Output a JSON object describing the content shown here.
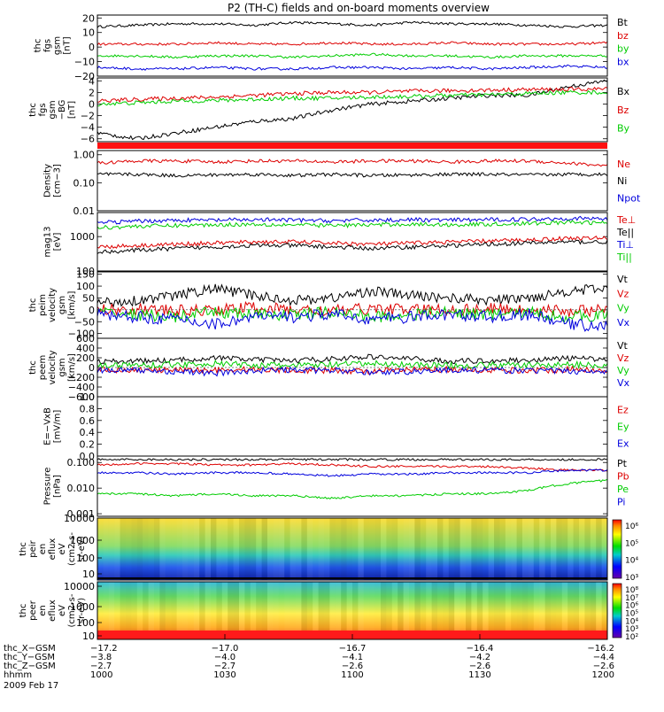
{
  "title": "P2 (TH-C) fields and on-board moments overview",
  "date": "2009 Feb 17",
  "colors": {
    "black": "#000000",
    "red": "#dd0000",
    "green": "#00cc00",
    "blue": "#0000dd"
  },
  "chart_data": [
    {
      "type": "line",
      "ylabel": [
        "thc",
        "fgs",
        "gsm",
        "[nT]"
      ],
      "yticks": [
        "20",
        "10",
        "0",
        "−10",
        "−20"
      ],
      "series": [
        {
          "name": "Bt",
          "color": "black",
          "values": [
            14,
            15,
            16,
            16,
            15,
            17,
            16,
            15,
            17,
            16,
            16,
            15,
            14,
            15
          ]
        },
        {
          "name": "bz",
          "color": "red",
          "values": [
            2,
            2,
            2,
            3,
            2,
            2,
            3,
            2,
            2,
            3,
            2,
            2,
            2,
            3
          ]
        },
        {
          "name": "by",
          "color": "green",
          "values": [
            -6,
            -6,
            -7,
            -6,
            -6,
            -7,
            -6,
            -5,
            -6,
            -6,
            -7,
            -6,
            -6,
            -6
          ]
        },
        {
          "name": "bx",
          "color": "blue",
          "values": [
            -14,
            -15,
            -15,
            -14,
            -15,
            -15,
            -14,
            -14,
            -15,
            -14,
            -15,
            -14,
            -13,
            -14
          ]
        }
      ]
    },
    {
      "type": "line",
      "ylabel": [
        "thc",
        "fgs",
        "gsm",
        "−BG",
        "[nT]"
      ],
      "yticks": [
        "4",
        "2",
        "0",
        "−2",
        "−4",
        "−6"
      ],
      "series": [
        {
          "name": "Bx",
          "color": "black",
          "values": [
            -5,
            -6,
            -5,
            -4,
            -3,
            -2.5,
            -1,
            0,
            0.5,
            1,
            1.5,
            1.5,
            3,
            4
          ]
        },
        {
          "name": "Bz",
          "color": "red",
          "values": [
            0.5,
            0.8,
            1,
            1.2,
            1.5,
            1.8,
            2,
            2,
            2.2,
            2.3,
            2.4,
            2.5,
            2.5,
            2.6
          ]
        },
        {
          "name": "By",
          "color": "green",
          "values": [
            0,
            0.2,
            0.5,
            0.6,
            0.8,
            1,
            1,
            1.2,
            1.3,
            1.5,
            1.6,
            1.8,
            2,
            2
          ]
        }
      ]
    },
    {
      "type": "line",
      "ylabel": [
        "Density",
        "[cm−3]"
      ],
      "yticks": [
        "1.00",
        "0.10",
        "0.01"
      ],
      "series": [
        {
          "name": "Ne",
          "color": "red",
          "values": [
            0.5,
            0.6,
            0.6,
            0.55,
            0.6,
            0.6,
            0.55,
            0.6,
            0.6,
            0.55,
            0.6,
            0.6,
            0.5,
            0.4
          ]
        },
        {
          "name": "Ni",
          "color": "black",
          "values": [
            0.2,
            0.2,
            0.18,
            0.19,
            0.2,
            0.18,
            0.2,
            0.18,
            0.19,
            0.2,
            0.2,
            0.19,
            0.2,
            0.2
          ]
        },
        {
          "name": "Npot",
          "color": "blue",
          "values": []
        }
      ]
    },
    {
      "type": "line",
      "ylabel": [
        "mag13",
        "[eV]"
      ],
      "yticks": [
        "1000",
        "100"
      ],
      "series": [
        {
          "name": "Te⊥",
          "color": "red",
          "values": [
            500,
            550,
            600,
            650,
            700,
            700,
            650,
            600,
            650,
            700,
            750,
            800,
            900,
            900
          ]
        },
        {
          "name": "Te||",
          "color": "black",
          "values": [
            350,
            400,
            450,
            500,
            550,
            550,
            500,
            450,
            500,
            550,
            600,
            650,
            700,
            700
          ]
        },
        {
          "name": "Ti⊥",
          "color": "blue",
          "values": [
            2500,
            2800,
            3000,
            3000,
            3100,
            3000,
            2900,
            3000,
            3100,
            3000,
            3100,
            3200,
            3400,
            3300
          ]
        },
        {
          "name": "Ti||",
          "color": "green",
          "values": [
            1800,
            2000,
            2100,
            2200,
            2300,
            2200,
            2100,
            2200,
            2300,
            2200,
            2300,
            2400,
            2600,
            2500
          ]
        }
      ]
    },
    {
      "type": "line",
      "ylabel": [
        "thc",
        "peim",
        "velocity",
        "gsm",
        "[km/s]"
      ],
      "yticks": [
        "150",
        "100",
        "50",
        "0",
        "−50",
        "−100"
      ],
      "series": [
        {
          "name": "Vt",
          "color": "black",
          "values": [
            30,
            40,
            60,
            90,
            60,
            40,
            50,
            80,
            60,
            50,
            40,
            50,
            80,
            90
          ]
        },
        {
          "name": "Vz",
          "color": "red",
          "values": [
            0,
            5,
            -5,
            0,
            10,
            0,
            -5,
            5,
            0,
            0,
            5,
            0,
            -5,
            0
          ]
        },
        {
          "name": "Vy",
          "color": "green",
          "values": [
            -10,
            -20,
            -30,
            -10,
            -20,
            -20,
            -10,
            -30,
            -20,
            -10,
            -20,
            -10,
            -30,
            -20
          ]
        },
        {
          "name": "Vx",
          "color": "blue",
          "values": [
            -20,
            -30,
            -40,
            -60,
            -30,
            -30,
            -20,
            -40,
            -30,
            -20,
            -30,
            -20,
            -60,
            -70
          ]
        }
      ]
    },
    {
      "type": "line",
      "ylabel": [
        "thc",
        "peem",
        "velocity",
        "gsm",
        "[km/s]"
      ],
      "yticks": [
        "600",
        "400",
        "200",
        "0",
        "−200",
        "−400",
        "−600"
      ],
      "series": [
        {
          "name": "Vt",
          "color": "black",
          "values": [
            120,
            130,
            150,
            200,
            160,
            140,
            180,
            220,
            180,
            130,
            140,
            150,
            190,
            170
          ]
        },
        {
          "name": "Vz",
          "color": "red",
          "values": [
            -40,
            -50,
            -60,
            -50,
            -40,
            -50,
            -60,
            -80,
            -50,
            -40,
            -50,
            -60,
            -40,
            -50
          ]
        },
        {
          "name": "Vy",
          "color": "green",
          "values": [
            40,
            50,
            60,
            80,
            50,
            40,
            60,
            80,
            60,
            40,
            50,
            50,
            60,
            50
          ]
        },
        {
          "name": "Vx",
          "color": "blue",
          "values": [
            -60,
            -60,
            -80,
            -120,
            -60,
            -50,
            -60,
            -100,
            -80,
            -50,
            -60,
            -60,
            -80,
            -70
          ]
        }
      ]
    },
    {
      "type": "line",
      "ylabel": [
        "E=−VxB",
        "[mV/m]"
      ],
      "yticks": [
        "1.0",
        "0.8",
        "0.6",
        "0.4",
        "0.2",
        "0.0"
      ],
      "series": [
        {
          "name": "Ez",
          "color": "red",
          "values": []
        },
        {
          "name": "Ey",
          "color": "green",
          "values": []
        },
        {
          "name": "Ex",
          "color": "blue",
          "values": []
        }
      ]
    },
    {
      "type": "line",
      "ylabel": [
        "Pressure",
        "[nPa]"
      ],
      "yticks": [
        "0.100",
        "0.010",
        "0.001"
      ],
      "series": [
        {
          "name": "Pt",
          "color": "black",
          "values": [
            0.13,
            0.13,
            0.13,
            0.13,
            0.13,
            0.13,
            0.13,
            0.13,
            0.13,
            0.13,
            0.13,
            0.13,
            0.13,
            0.13
          ]
        },
        {
          "name": "Pb",
          "color": "red",
          "values": [
            0.08,
            0.09,
            0.09,
            0.08,
            0.08,
            0.09,
            0.08,
            0.07,
            0.07,
            0.07,
            0.07,
            0.06,
            0.05,
            0.05
          ]
        },
        {
          "name": "Pe",
          "color": "green",
          "values": [
            0.006,
            0.006,
            0.005,
            0.006,
            0.005,
            0.005,
            0.004,
            0.005,
            0.005,
            0.006,
            0.006,
            0.008,
            0.015,
            0.02
          ]
        },
        {
          "name": "Pi",
          "color": "blue",
          "values": [
            0.04,
            0.04,
            0.035,
            0.04,
            0.04,
            0.035,
            0.03,
            0.035,
            0.035,
            0.04,
            0.04,
            0.04,
            0.05,
            0.05
          ]
        }
      ]
    },
    {
      "type": "heatmap",
      "ylabel": [
        "thc",
        "peir",
        "en",
        "eflux",
        "eV",
        "(cm2-s-",
        "sr-eV)"
      ],
      "yticks": [
        "10000",
        "1000",
        "100",
        "10"
      ],
      "colorbar": [
        "10⁶",
        "10⁵",
        "10⁴",
        "10³"
      ]
    },
    {
      "type": "heatmap",
      "ylabel": [
        "thc",
        "peer",
        "en",
        "eflux",
        "eV",
        "(cm2-s-",
        "sr-eV)"
      ],
      "yticks": [
        "10000",
        "1000",
        "100",
        "10"
      ],
      "colorbar": [
        "10⁸",
        "10⁷",
        "10⁶",
        "10⁵",
        "10⁴",
        "10³",
        "10²"
      ]
    }
  ],
  "xaxis": {
    "rows": [
      {
        "label": "thc_X−GSM",
        "values": [
          "−17.2",
          "−17.0",
          "−16.7",
          "−16.4",
          "−16.2"
        ]
      },
      {
        "label": "thc_Y−GSM",
        "values": [
          "−3.8",
          "−4.0",
          "−4.1",
          "−4.2",
          "−4.4"
        ]
      },
      {
        "label": "thc_Z−GSM",
        "values": [
          "−2.7",
          "−2.7",
          "−2.6",
          "−2.6",
          "−2.6"
        ]
      },
      {
        "label": "hhmm",
        "values": [
          "1000",
          "1030",
          "1100",
          "1130",
          "1200"
        ]
      }
    ]
  }
}
